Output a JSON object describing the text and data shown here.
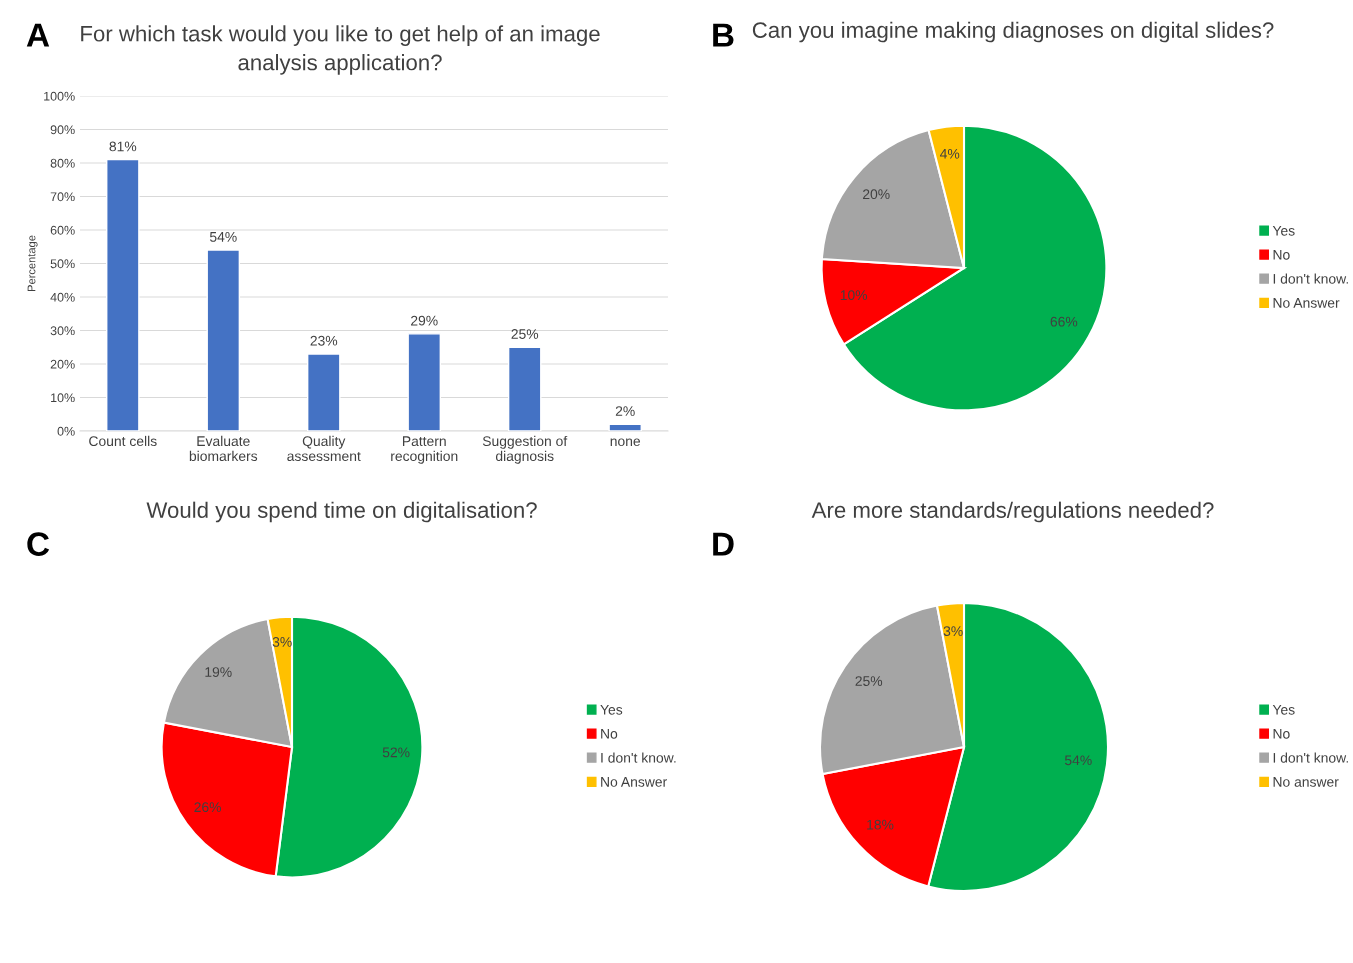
{
  "chart_data": [
    {
      "type": "bar",
      "title": "For which task would you like to get help of an image\nanalysis application?",
      "ylabel": "Percentage",
      "annotations": [
        "A"
      ],
      "categories": [
        "Count cells",
        "Evaluate\nbiomarkers",
        "Quality\nassessment",
        "Pattern\nrecognition",
        "Suggestion of\ndiagnosis",
        "none"
      ],
      "values": [
        81,
        54,
        23,
        29,
        25,
        2
      ],
      "value_labels": [
        "81%",
        "54%",
        "23%",
        "29%",
        "25%",
        "2%"
      ],
      "color": "#4472c4",
      "ylim": [
        0,
        100
      ],
      "yticks": [
        {
          "value": 0,
          "label": "0%"
        },
        {
          "value": 10,
          "label": "10%"
        },
        {
          "value": 20,
          "label": "20%"
        },
        {
          "value": 30,
          "label": "30%"
        },
        {
          "value": 40,
          "label": "40%"
        },
        {
          "value": 50,
          "label": "50%"
        },
        {
          "value": 60,
          "label": "60%"
        },
        {
          "value": 70,
          "label": "70%"
        },
        {
          "value": 80,
          "label": "80%"
        },
        {
          "value": 90,
          "label": "90%"
        },
        {
          "value": 100,
          "label": "100%"
        }
      ],
      "grid": "y"
    },
    {
      "type": "pie",
      "title": "Can you imagine making diagnoses on digital slides?",
      "annotations": [
        "B"
      ],
      "categories": [
        "Yes",
        "No",
        "I don't know.",
        "No Answer"
      ],
      "values": [
        66,
        10,
        20,
        4
      ],
      "value_labels": [
        "66%",
        "10%",
        "20%",
        "4%"
      ],
      "colors": [
        "#00b050",
        "#ff0000",
        "#a5a5a5",
        "#ffc000"
      ],
      "legend": "right"
    },
    {
      "type": "pie",
      "title": "Would you spend time on digitalisation?",
      "annotations": [
        "C"
      ],
      "categories": [
        "Yes",
        "No",
        "I don't know.",
        "No Answer"
      ],
      "values": [
        52,
        26,
        19,
        3
      ],
      "value_labels": [
        "52%",
        "26%",
        "19%",
        "3%"
      ],
      "colors": [
        "#00b050",
        "#ff0000",
        "#a5a5a5",
        "#ffc000"
      ],
      "legend": "right"
    },
    {
      "type": "pie",
      "title": "Are more standards/regulations needed?",
      "annotations": [
        "D"
      ],
      "categories": [
        "Yes",
        "No",
        "I don't know.",
        "No answer"
      ],
      "values": [
        54,
        18,
        25,
        3
      ],
      "value_labels": [
        "54%",
        "18%",
        "25%",
        "3%"
      ],
      "colors": [
        "#00b050",
        "#ff0000",
        "#a5a5a5",
        "#ffc000"
      ],
      "legend": "right"
    }
  ]
}
